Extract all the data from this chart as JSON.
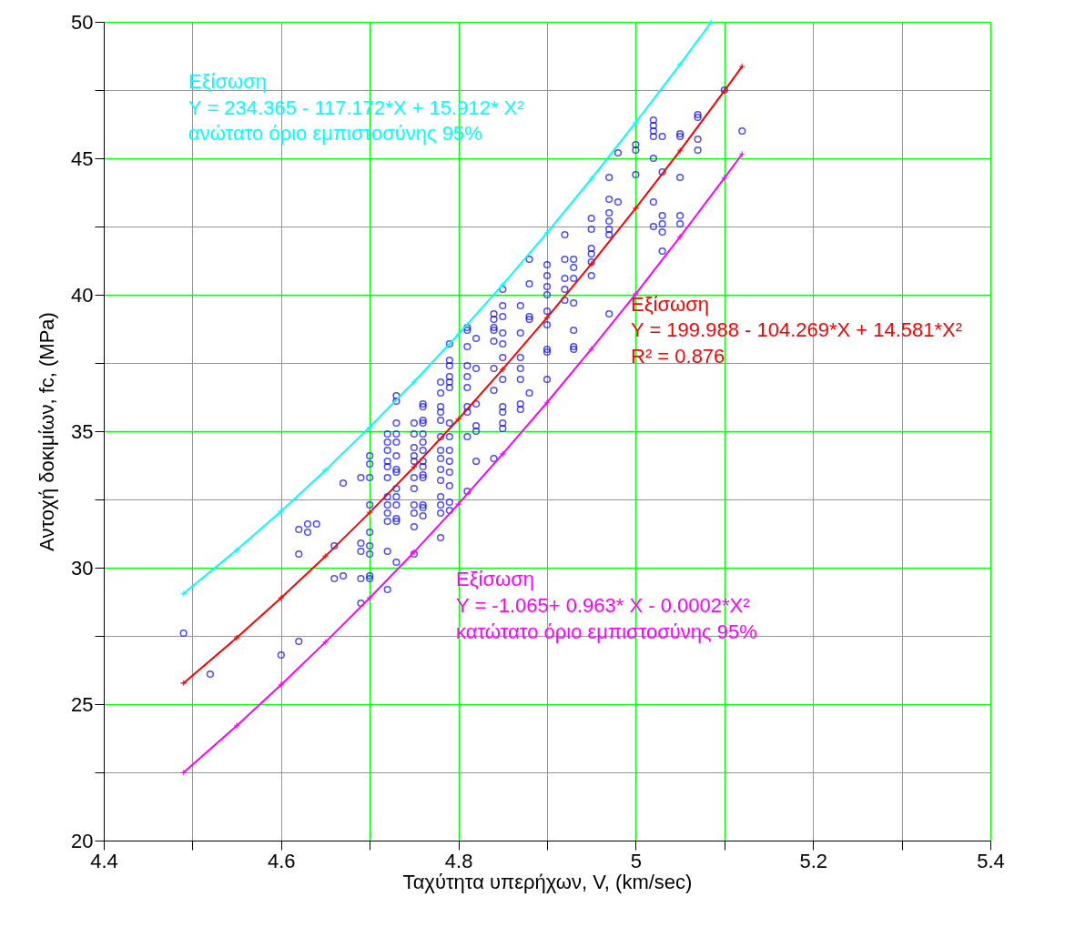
{
  "chart_data": {
    "type": "scatter",
    "xlabel": "Ταχύτητα υπερήχων, V, (km/sec)",
    "ylabel": "Αντοχή δοκιμίων, fc, (MPa)",
    "xlim": [
      4.4,
      5.4
    ],
    "ylim": [
      20,
      50
    ],
    "xticks": [
      4.4,
      {
        "value": 4.5,
        "label": null
      },
      4.6,
      {
        "value": 4.7,
        "label": null
      },
      4.8,
      {
        "value": 4.9,
        "label": null
      },
      5,
      {
        "value": 5.1,
        "label": null
      },
      5.2,
      {
        "value": 5.3,
        "label": null
      },
      5.4
    ],
    "yticks": [
      20,
      {
        "value": 22.5,
        "label": null
      },
      25,
      {
        "value": 27.5,
        "label": null
      },
      30,
      {
        "value": 32.5,
        "label": null
      },
      35,
      {
        "value": 37.5,
        "label": null
      },
      40,
      {
        "value": 42.5,
        "label": null
      },
      45,
      {
        "value": 47.5,
        "label": null
      },
      50
    ],
    "grid": true,
    "annotations": [
      "Εξίσωση",
      "Y = 234.365 - 117.172*X + 15.912* X²",
      "ανώτατο όριο εμπιστοσύνης 95%",
      "Εξίσωση",
      "Y = 199.988 - 104.269*X + 14.581*X²",
      "R² = 0.876",
      "Εξίσωση",
      "Y = -1.065+ 0.963* X - 0.0002*X²",
      "κατώτατο όριο εμπιστοσύνης 95%"
    ],
    "series": [
      {
        "marker": "circle",
        "color": "#0000ff",
        "x": [
          4.49,
          4.52,
          4.6,
          4.62,
          4.62,
          4.62,
          4.63,
          4.63,
          4.64,
          4.66,
          4.66,
          4.67,
          4.67,
          4.69,
          4.69,
          4.69,
          4.69,
          4.69,
          4.7,
          4.7,
          4.7,
          4.7,
          4.7,
          4.7,
          4.7,
          4.7,
          4.7,
          4.72,
          4.72,
          4.72,
          4.72,
          4.72,
          4.72,
          4.72,
          4.72,
          4.72,
          4.72,
          4.72,
          4.72,
          4.73,
          4.73,
          4.73,
          4.73,
          4.73,
          4.73,
          4.73,
          4.73,
          4.73,
          4.73,
          4.73,
          4.73,
          4.73,
          4.73,
          4.75,
          4.75,
          4.75,
          4.75,
          4.75,
          4.75,
          4.75,
          4.75,
          4.75,
          4.75,
          4.75,
          4.76,
          4.76,
          4.76,
          4.76,
          4.76,
          4.76,
          4.76,
          4.76,
          4.76,
          4.76,
          4.76,
          4.76,
          4.76,
          4.76,
          4.78,
          4.78,
          4.78,
          4.78,
          4.78,
          4.78,
          4.78,
          4.78,
          4.78,
          4.78,
          4.78,
          4.78,
          4.78,
          4.78,
          4.79,
          4.79,
          4.79,
          4.79,
          4.79,
          4.79,
          4.79,
          4.79,
          4.79,
          4.79,
          4.79,
          4.79,
          4.79,
          4.79,
          4.81,
          4.81,
          4.81,
          4.81,
          4.81,
          4.81,
          4.81,
          4.81,
          4.81,
          4.81,
          4.82,
          4.82,
          4.82,
          4.82,
          4.82,
          4.82,
          4.84,
          4.84,
          4.84,
          4.84,
          4.84,
          4.84,
          4.84,
          4.84,
          4.85,
          4.85,
          4.85,
          4.85,
          4.85,
          4.85,
          4.85,
          4.85,
          4.85,
          4.85,
          4.85,
          4.87,
          4.87,
          4.87,
          4.87,
          4.87,
          4.87,
          4.87,
          4.88,
          4.88,
          4.88,
          4.88,
          4.88,
          4.9,
          4.9,
          4.9,
          4.9,
          4.9,
          4.9,
          4.9,
          4.9,
          4.9,
          4.92,
          4.92,
          4.92,
          4.92,
          4.92,
          4.93,
          4.93,
          4.93,
          4.93,
          4.93,
          4.93,
          4.93,
          4.95,
          4.95,
          4.95,
          4.95,
          4.95,
          4.95,
          4.97,
          4.97,
          4.97,
          4.97,
          4.97,
          4.97,
          4.97,
          4.98,
          4.98,
          5.0,
          5.0,
          5.0,
          5.02,
          5.02,
          5.02,
          5.02,
          5.02,
          5.02,
          5.02,
          5.03,
          5.03,
          5.03,
          5.03,
          5.03,
          5.03,
          5.05,
          5.05,
          5.05,
          5.05,
          5.05,
          5.07,
          5.07,
          5.07,
          5.07,
          5.1,
          5.12
        ],
        "values": [
          27.6,
          26.1,
          26.8,
          27.3,
          31.4,
          30.5,
          31.6,
          31.3,
          31.6,
          30.8,
          29.6,
          33.1,
          29.7,
          33.3,
          30.9,
          30.6,
          29.6,
          28.7,
          34.1,
          33.8,
          33.3,
          32.3,
          31.3,
          30.8,
          30.5,
          29.7,
          29.6,
          34.9,
          34.6,
          34.3,
          33.9,
          33.7,
          33.3,
          32.6,
          32.3,
          32.0,
          31.7,
          30.6,
          29.2,
          36.3,
          36.1,
          35.3,
          34.9,
          34.6,
          34.1,
          33.6,
          33.5,
          32.9,
          32.6,
          32.3,
          31.8,
          31.7,
          30.2,
          35.3,
          34.9,
          34.4,
          34.1,
          33.9,
          33.3,
          32.9,
          32.3,
          32.0,
          31.5,
          30.5,
          36.0,
          35.9,
          35.4,
          35.3,
          34.9,
          34.6,
          34.3,
          33.9,
          33.7,
          33.4,
          33.3,
          32.3,
          32.2,
          31.9,
          36.8,
          36.4,
          35.9,
          35.7,
          35.4,
          34.8,
          34.3,
          34.0,
          33.6,
          33.2,
          32.6,
          32.3,
          32.0,
          31.1,
          38.2,
          37.6,
          37.4,
          37.0,
          36.8,
          36.6,
          35.3,
          34.8,
          34.3,
          33.9,
          33.5,
          33.0,
          32.4,
          32.1,
          38.8,
          38.7,
          38.1,
          37.4,
          37.0,
          36.6,
          35.9,
          35.7,
          34.8,
          32.8,
          38.4,
          37.3,
          36.0,
          35.2,
          35.0,
          33.9,
          39.3,
          39.1,
          38.8,
          38.7,
          38.3,
          37.3,
          36.5,
          34.0,
          40.2,
          39.6,
          39.2,
          38.6,
          38.2,
          37.7,
          36.9,
          35.9,
          35.7,
          35.3,
          35.1,
          39.6,
          38.6,
          37.7,
          37.3,
          36.9,
          36.0,
          35.8,
          41.3,
          40.4,
          39.2,
          39.1,
          36.4,
          41.1,
          40.7,
          40.3,
          40.0,
          39.4,
          38.9,
          38.0,
          37.9,
          36.9,
          42.2,
          41.3,
          40.6,
          40.2,
          39.8,
          41.3,
          41.0,
          40.6,
          39.7,
          38.7,
          38.1,
          38.0,
          42.8,
          42.4,
          41.5,
          40.7,
          41.7,
          41.2,
          44.3,
          43.5,
          43.0,
          42.7,
          42.4,
          42.2,
          39.3,
          45.2,
          43.4,
          45.5,
          45.3,
          44.4,
          46.4,
          46.2,
          46.0,
          45.8,
          45.0,
          43.4,
          42.5,
          45.8,
          44.5,
          42.9,
          42.6,
          42.3,
          41.6,
          45.9,
          45.8,
          44.3,
          42.9,
          42.6,
          46.6,
          46.5,
          45.7,
          45.3,
          47.5,
          46.0
        ]
      },
      {
        "type": "line",
        "line_style": "solid",
        "marker": "cross",
        "color": "#00ffff",
        "x": [
          4.49,
          4.55,
          4.6,
          4.65,
          4.7,
          4.75,
          4.8,
          4.85,
          4.9,
          4.95,
          5.0,
          5.05,
          5.085
        ],
        "values": [
          29.05,
          30.65,
          32.07,
          33.57,
          35.15,
          36.81,
          38.55,
          40.37,
          42.27,
          44.25,
          46.31,
          48.44,
          49.98
        ]
      },
      {
        "type": "line",
        "line_style": "solid",
        "marker": "cross",
        "color": "#ff0000",
        "x": [
          4.49,
          4.55,
          4.6,
          4.65,
          4.7,
          4.75,
          4.8,
          4.85,
          4.9,
          4.95,
          5.0,
          5.05,
          5.1,
          5.12
        ],
        "values": [
          25.77,
          27.43,
          28.89,
          30.42,
          32.02,
          33.69,
          35.44,
          37.27,
          39.16,
          41.13,
          43.17,
          45.28,
          47.47,
          48.36
        ]
      },
      {
        "type": "line",
        "line_style": "solid",
        "marker": "cross",
        "color": "#ff00ff",
        "x": [
          4.49,
          4.55,
          4.6,
          4.65,
          4.7,
          4.75,
          4.8,
          4.85,
          4.9,
          4.95,
          5.0,
          5.05,
          5.1,
          5.12
        ],
        "values": [
          22.49,
          24.21,
          25.71,
          27.27,
          28.89,
          30.57,
          32.33,
          34.17,
          36.05,
          38.01,
          40.03,
          42.12,
          44.28,
          45.15
        ]
      }
    ]
  }
}
